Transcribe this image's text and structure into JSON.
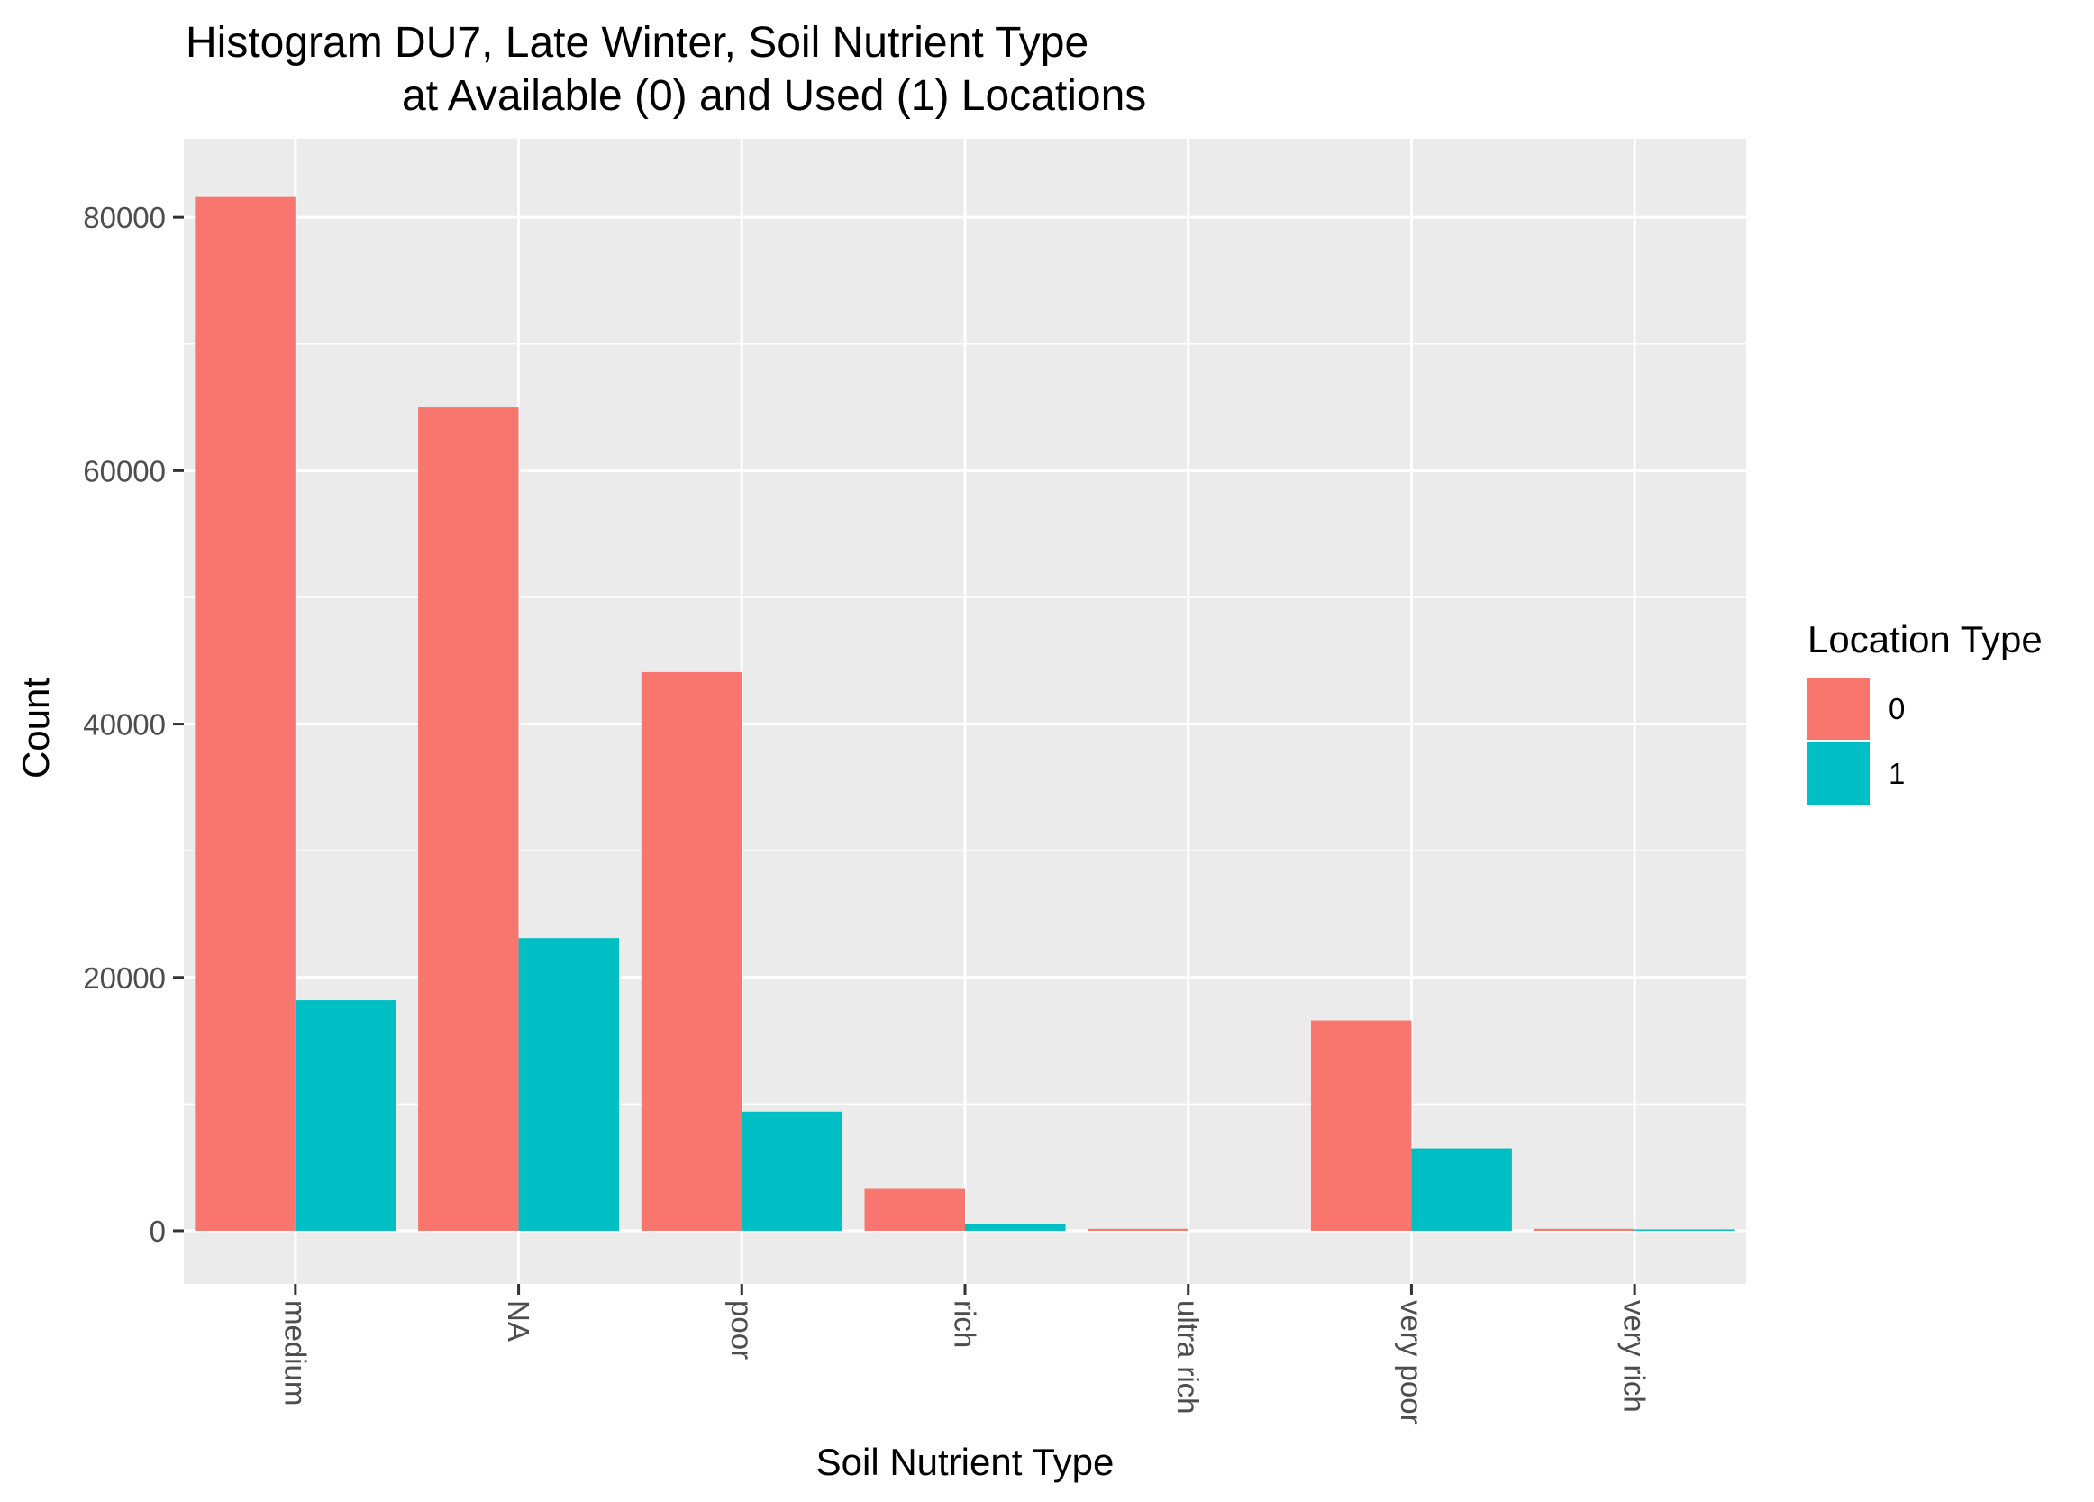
{
  "chart_data": {
    "type": "bar",
    "title_line1": "Histogram DU7, Late Winter, Soil Nutrient Type",
    "title_line2": "at Available (0) and Used (1) Locations",
    "xlabel": "Soil Nutrient Type",
    "ylabel": "Count",
    "categories": [
      "medium",
      "NA",
      "poor",
      "rich",
      "ultra rich",
      "very poor",
      "very rich"
    ],
    "series": [
      {
        "name": "0",
        "color": "#F8766D",
        "values": [
          81600,
          65000,
          44100,
          3300,
          150,
          16600,
          150
        ]
      },
      {
        "name": "1",
        "color": "#00BFC4",
        "values": [
          18200,
          23100,
          9400,
          500,
          0,
          6500,
          100
        ]
      }
    ],
    "ylim": [
      -4200,
      86200
    ],
    "yticks": [
      0,
      20000,
      40000,
      60000,
      80000
    ],
    "grid": true,
    "legend": {
      "title": "Location Type",
      "placement": "right"
    },
    "panel_color": "#EBEBEB",
    "grid_color": "#FFFFFF",
    "tick_label_color": "#4D4D4D"
  }
}
